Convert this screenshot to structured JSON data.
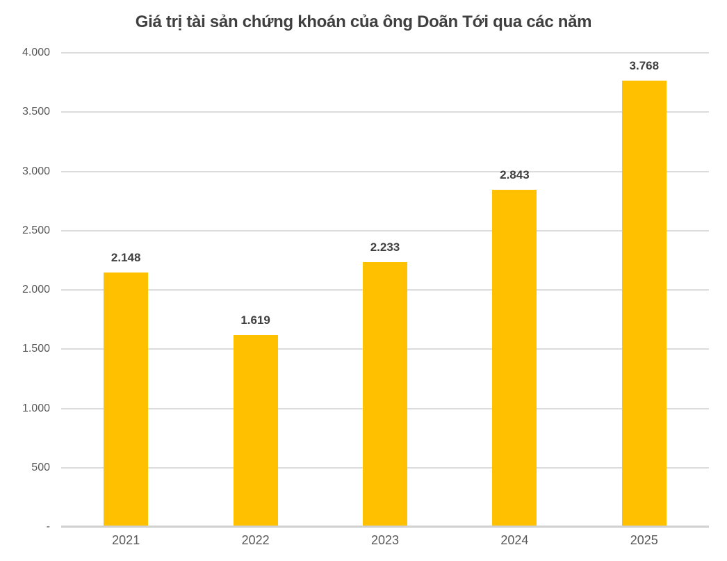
{
  "chart_data": {
    "type": "bar",
    "title": "Giá trị tài sản chứng khoán của ông Doãn Tới qua các năm",
    "categories": [
      "2021",
      "2022",
      "2023",
      "2024",
      "2025"
    ],
    "values": [
      2148,
      1619,
      2233,
      2843,
      3768
    ],
    "value_labels": [
      "2.148",
      "1.619",
      "2.233",
      "2.843",
      "3.768"
    ],
    "ylim": [
      0,
      4000
    ],
    "yticks": [
      0,
      500,
      1000,
      1500,
      2000,
      2500,
      3000,
      3500,
      4000
    ],
    "ytick_labels": [
      "-",
      "500",
      "1.000",
      "1.500",
      "2.000",
      "2.500",
      "3.000",
      "3.500",
      "4.000"
    ],
    "xlabel": "",
    "ylabel": "",
    "grid": true,
    "legend": false,
    "legend_position": "none",
    "colors": {
      "bar": "#FFC000",
      "title": "#3F3F3F",
      "value_label": "#3F3F3F",
      "axis_text": "#595959",
      "gridline": "#DCDCDC",
      "axis_line": "#D0D0D0",
      "background": "#FFFFFF"
    }
  }
}
